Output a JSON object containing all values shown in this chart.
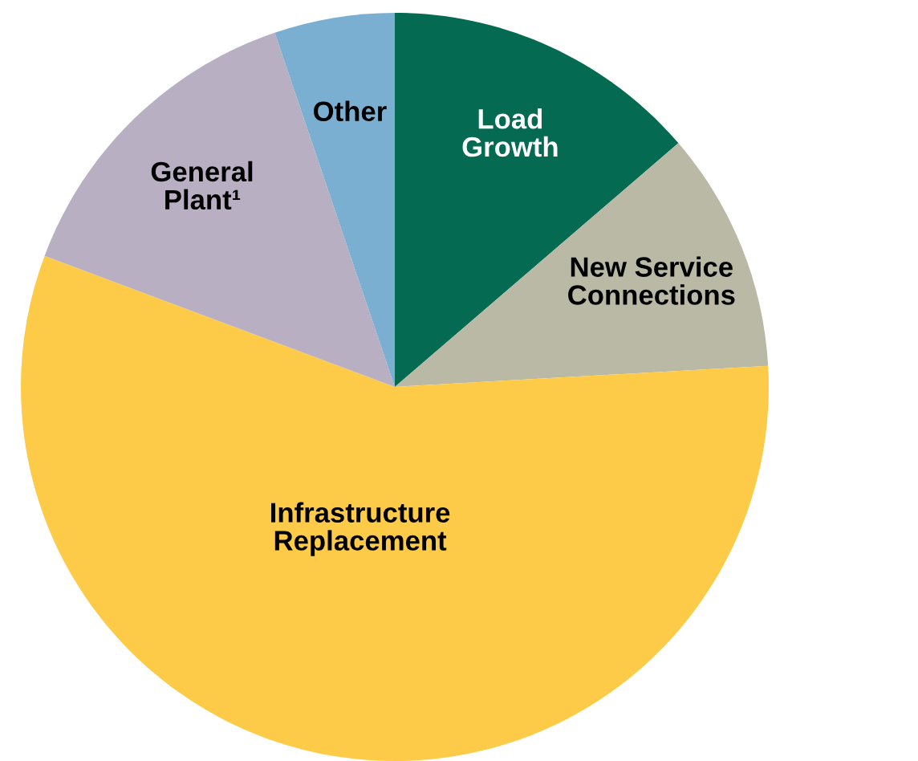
{
  "chart_data": {
    "type": "pie",
    "categories": [
      "Load\nGrowth",
      "New Service\nConnections",
      "Infrastructure\nReplacement",
      "General\nPlant¹",
      "Other"
    ],
    "values": [
      13.7,
      10.4,
      56.6,
      14.1,
      5.2
    ],
    "colors": [
      "#046a52",
      "#b9b9a5",
      "#fdcb47",
      "#b9afc3",
      "#7bafd2"
    ]
  }
}
